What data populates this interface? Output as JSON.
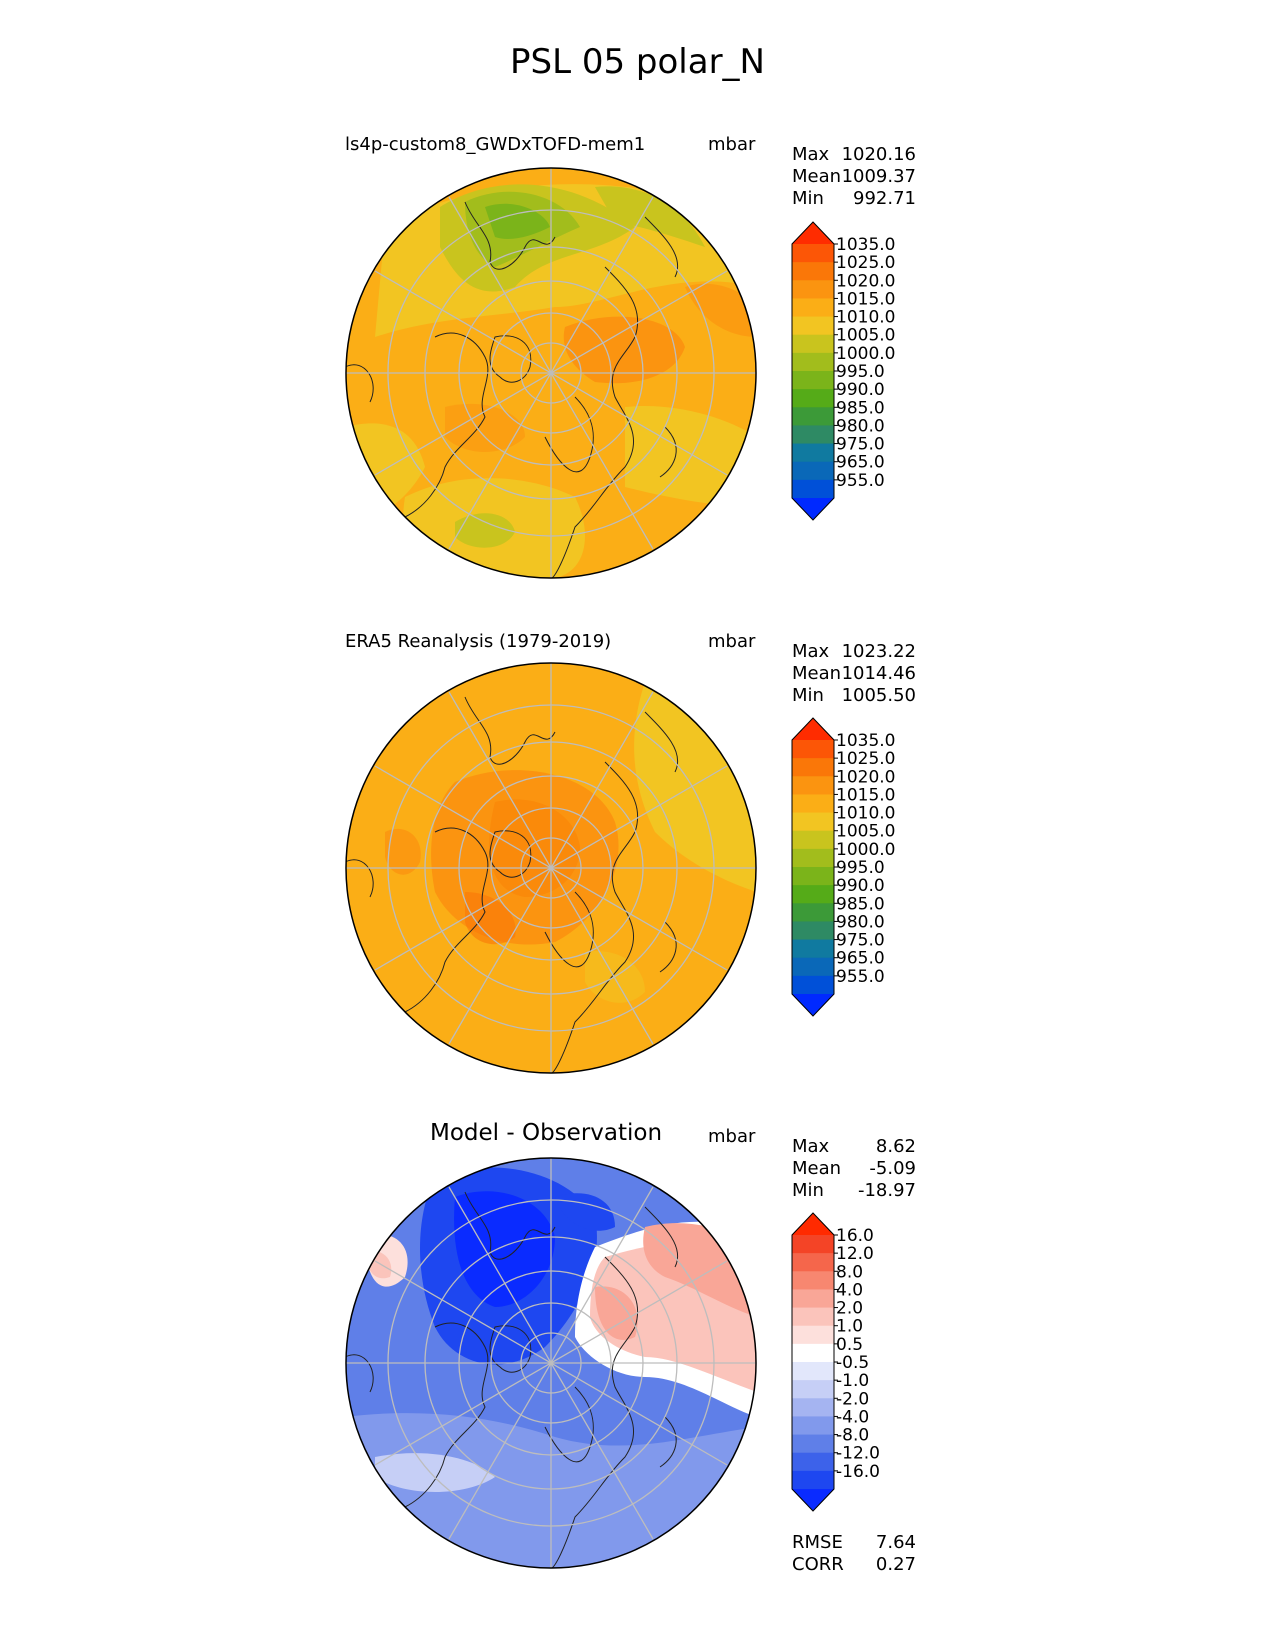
{
  "figure": {
    "title": "PSL 05 polar_N"
  },
  "panels": [
    {
      "title": "ls4p-custom8_GWDxTOFD-mem1",
      "units": "mbar",
      "stats": [
        {
          "label": "Max",
          "value": "1020.16"
        },
        {
          "label": "Mean",
          "value": "1009.37"
        },
        {
          "label": "Min",
          "value": "992.71"
        }
      ]
    },
    {
      "title": "ERA5 Reanalysis (1979-2019)",
      "units": "mbar",
      "stats": [
        {
          "label": "Max",
          "value": "1023.22"
        },
        {
          "label": "Mean",
          "value": "1014.46"
        },
        {
          "label": "Min",
          "value": "1005.50"
        }
      ]
    },
    {
      "title": "Model - Observation",
      "units": "mbar",
      "stats": [
        {
          "label": "Max",
          "value": "8.62"
        },
        {
          "label": "Mean",
          "value": "-5.09"
        },
        {
          "label": "Min",
          "value": "-18.97"
        }
      ],
      "metrics": [
        {
          "label": "RMSE",
          "value": "7.64"
        },
        {
          "label": "CORR",
          "value": "0.27"
        }
      ]
    }
  ],
  "chart_data": [
    {
      "type": "heatmap",
      "projection": "north-polar-stereographic",
      "title": "ls4p-custom8_GWDxTOFD-mem1",
      "units": "mbar",
      "colorbar": {
        "levels": [
          955,
          965,
          975,
          980,
          985,
          990,
          995,
          1000,
          1005,
          1010,
          1015,
          1020,
          1025,
          1035
        ],
        "tick_labels": [
          "955.0",
          "965.0",
          "975.0",
          "980.0",
          "985.0",
          "990.0",
          "995.0",
          "1000.0",
          "1005.0",
          "1010.0",
          "1015.0",
          "1020.0",
          "1025.0",
          "1035.0"
        ],
        "colors": [
          "#0029ff",
          "#0050d8",
          "#0a68b8",
          "#107aa0",
          "#2e8a64",
          "#3c9a38",
          "#55ab18",
          "#7bb41a",
          "#a2bd1c",
          "#c9c41e",
          "#f2c522",
          "#fbae16",
          "#fb9410",
          "#fa7708",
          "#fc5606",
          "#ff2c00"
        ],
        "extend": "both"
      },
      "stats": {
        "max": 1020.16,
        "mean": 1009.37,
        "min": 992.71
      }
    },
    {
      "type": "heatmap",
      "projection": "north-polar-stereographic",
      "title": "ERA5 Reanalysis (1979-2019)",
      "units": "mbar",
      "colorbar": {
        "levels": [
          955,
          965,
          975,
          980,
          985,
          990,
          995,
          1000,
          1005,
          1010,
          1015,
          1020,
          1025,
          1035
        ],
        "tick_labels": [
          "955.0",
          "965.0",
          "975.0",
          "980.0",
          "985.0",
          "990.0",
          "995.0",
          "1000.0",
          "1005.0",
          "1010.0",
          "1015.0",
          "1020.0",
          "1025.0",
          "1035.0"
        ],
        "colors": [
          "#0029ff",
          "#0050d8",
          "#0a68b8",
          "#107aa0",
          "#2e8a64",
          "#3c9a38",
          "#55ab18",
          "#7bb41a",
          "#a2bd1c",
          "#c9c41e",
          "#f2c522",
          "#fbae16",
          "#fb9410",
          "#fa7708",
          "#fc5606",
          "#ff2c00"
        ],
        "extend": "both"
      },
      "stats": {
        "max": 1023.22,
        "mean": 1014.46,
        "min": 1005.5
      }
    },
    {
      "type": "heatmap",
      "projection": "north-polar-stereographic",
      "title": "Model - Observation",
      "units": "mbar",
      "colorbar": {
        "levels": [
          -16,
          -12,
          -8,
          -4,
          -2,
          -1,
          -0.5,
          0.5,
          1,
          2,
          4,
          8,
          12,
          16
        ],
        "tick_labels": [
          "-16.0",
          "-12.0",
          "-8.0",
          "-4.0",
          "-2.0",
          "-1.0",
          "-0.5",
          "0.5",
          "1.0",
          "2.0",
          "4.0",
          "8.0",
          "12.0",
          "16.0"
        ],
        "colors": [
          "#0a2bff",
          "#1e47f0",
          "#3d62ea",
          "#5f7fe8",
          "#8199ec",
          "#a5b4f1",
          "#c6cff6",
          "#e2e7fb",
          "#ffffff",
          "#fde0dc",
          "#fbc4bb",
          "#f9a697",
          "#f78770",
          "#f5664b",
          "#f44426",
          "#ff2a00"
        ],
        "extend": "both"
      },
      "stats": {
        "max": 8.62,
        "mean": -5.09,
        "min": -18.97
      },
      "rmse": 7.64,
      "corr": 0.27
    }
  ]
}
